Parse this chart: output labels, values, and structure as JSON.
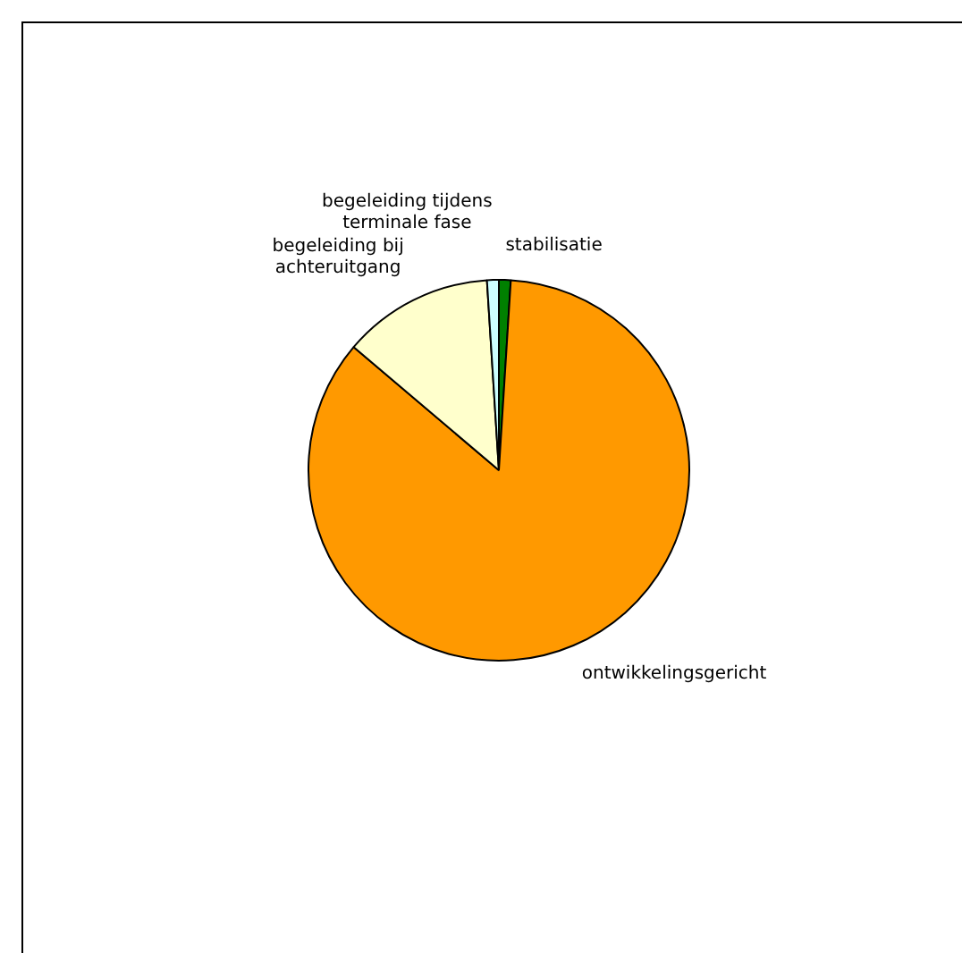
{
  "chart_data": {
    "type": "pie",
    "categories": [
      "stabilisatie",
      "ontwikkelingsgericht",
      "begeleiding bij achteruitgang",
      "begeleiding tijdens terminale fase"
    ],
    "values": [
      1,
      85.2,
      12.8,
      1
    ],
    "colors": [
      "#008000",
      "#ff9900",
      "#ffffcc",
      "#ccffff"
    ],
    "legend": false
  }
}
